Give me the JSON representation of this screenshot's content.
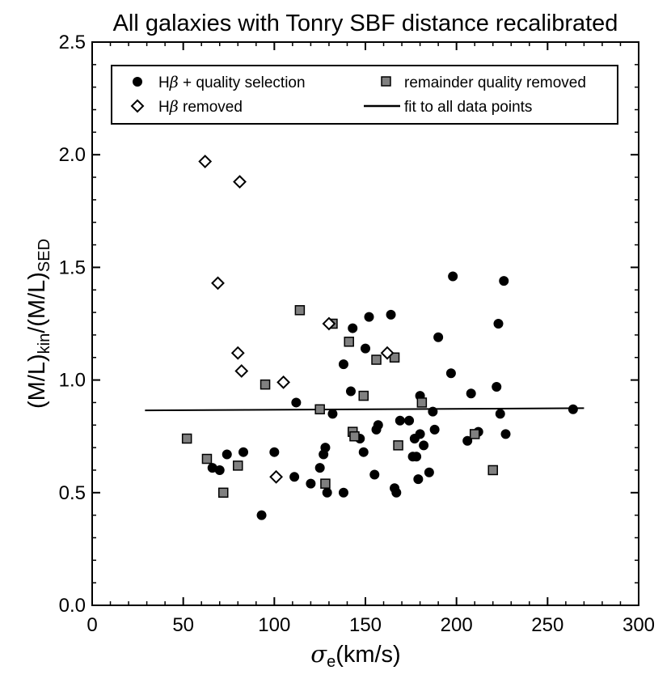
{
  "chart_data": {
    "type": "scatter",
    "title": "All galaxies with Tonry SBF distance recalibrated",
    "xlabel": {
      "symbol": "σ",
      "subscript": "e",
      "rest": "(km/s)"
    },
    "ylabel": {
      "part1": "(M/L)",
      "sub1": "kin",
      "part2": "/(M/L)",
      "sub2": "SED"
    },
    "xlim": [
      0,
      300
    ],
    "ylim": [
      0,
      2.5
    ],
    "xticks": [
      0,
      50,
      100,
      150,
      200,
      250,
      300
    ],
    "xtick_labels": [
      "0",
      "50",
      "100",
      "150",
      "200",
      "250",
      "300"
    ],
    "yticks": [
      0,
      0.5,
      1.0,
      1.5,
      2.0,
      2.5
    ],
    "ytick_labels": [
      "0.0",
      "0.5",
      "1.0",
      "1.5",
      "2.0",
      "2.5"
    ],
    "legend": {
      "position": "top",
      "entries": [
        {
          "marker": "circle",
          "pre": "H",
          "greek": "β",
          "post": " + quality selection"
        },
        {
          "marker": "square",
          "pre": "remainder quality removed",
          "greek": "",
          "post": ""
        },
        {
          "marker": "diamond",
          "pre": "H",
          "greek": "β",
          "post": " removed"
        },
        {
          "marker": "line",
          "pre": "fit to all data points",
          "greek": "",
          "post": ""
        }
      ]
    },
    "series": [
      {
        "name": "Hβ + quality selection",
        "marker": "circle",
        "color": "#000000",
        "points": [
          [
            66,
            0.61
          ],
          [
            70,
            0.6
          ],
          [
            74,
            0.67
          ],
          [
            83,
            0.68
          ],
          [
            93,
            0.4
          ],
          [
            100,
            0.68
          ],
          [
            111,
            0.57
          ],
          [
            112,
            0.9
          ],
          [
            120,
            0.54
          ],
          [
            125,
            0.61
          ],
          [
            127,
            0.67
          ],
          [
            128,
            0.7
          ],
          [
            129,
            0.5
          ],
          [
            132,
            0.85
          ],
          [
            138,
            0.5
          ],
          [
            138,
            1.07
          ],
          [
            142,
            0.95
          ],
          [
            143,
            1.23
          ],
          [
            147,
            0.74
          ],
          [
            149,
            0.68
          ],
          [
            150,
            1.14
          ],
          [
            152,
            1.28
          ],
          [
            155,
            0.58
          ],
          [
            156,
            0.78
          ],
          [
            157,
            0.8
          ],
          [
            164,
            1.29
          ],
          [
            166,
            0.52
          ],
          [
            167,
            0.5
          ],
          [
            169,
            0.82
          ],
          [
            174,
            0.82
          ],
          [
            176,
            0.66
          ],
          [
            177,
            0.74
          ],
          [
            178,
            0.66
          ],
          [
            179,
            0.56
          ],
          [
            180,
            0.93
          ],
          [
            180,
            0.76
          ],
          [
            182,
            0.71
          ],
          [
            185,
            0.59
          ],
          [
            187,
            0.86
          ],
          [
            188,
            0.78
          ],
          [
            190,
            1.19
          ],
          [
            197,
            1.03
          ],
          [
            198,
            1.46
          ],
          [
            206,
            0.73
          ],
          [
            208,
            0.94
          ],
          [
            212,
            0.77
          ],
          [
            222,
            0.97
          ],
          [
            223,
            1.25
          ],
          [
            224,
            0.85
          ],
          [
            226,
            1.44
          ],
          [
            227,
            0.76
          ],
          [
            264,
            0.87
          ]
        ]
      },
      {
        "name": "remainder quality removed",
        "marker": "square",
        "color": "#808080",
        "points": [
          [
            52,
            0.74
          ],
          [
            63,
            0.65
          ],
          [
            72,
            0.5
          ],
          [
            80,
            0.62
          ],
          [
            95,
            0.98
          ],
          [
            114,
            1.31
          ],
          [
            125,
            0.87
          ],
          [
            128,
            0.54
          ],
          [
            132,
            1.25
          ],
          [
            141,
            1.17
          ],
          [
            143,
            0.77
          ],
          [
            144,
            0.75
          ],
          [
            149,
            0.93
          ],
          [
            156,
            1.09
          ],
          [
            166,
            1.1
          ],
          [
            168,
            0.71
          ],
          [
            181,
            0.9
          ],
          [
            210,
            0.76
          ],
          [
            220,
            0.6
          ]
        ]
      },
      {
        "name": "Hβ removed",
        "marker": "diamond",
        "color": "#ffffff",
        "points": [
          [
            62,
            1.97
          ],
          [
            69,
            1.43
          ],
          [
            80,
            1.12
          ],
          [
            81,
            1.88
          ],
          [
            82,
            1.04
          ],
          [
            101,
            0.57
          ],
          [
            105,
            0.99
          ],
          [
            130,
            1.25
          ],
          [
            162,
            1.12
          ]
        ]
      }
    ],
    "fit_line": {
      "name": "fit to all data points",
      "x": [
        29,
        270
      ],
      "y": [
        0.865,
        0.875
      ]
    }
  }
}
